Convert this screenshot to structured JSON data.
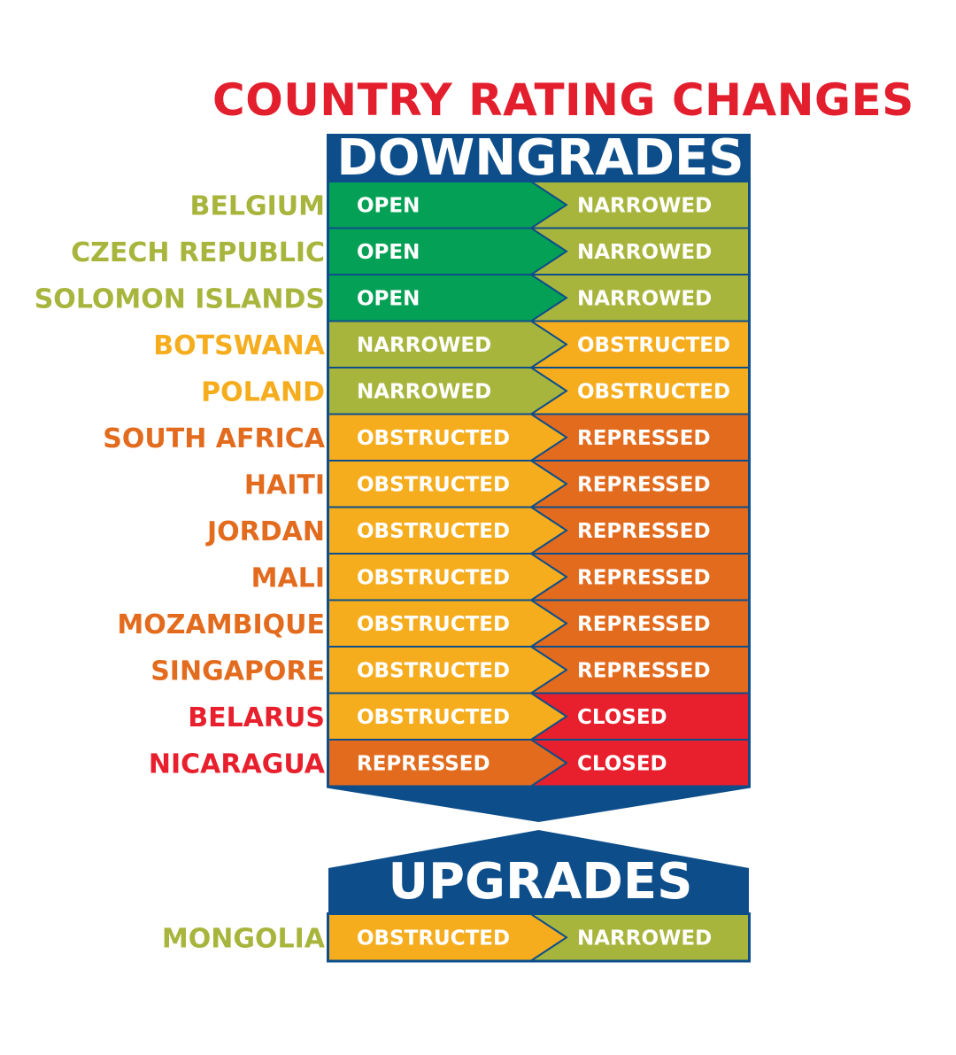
{
  "title": "COUNTRY RATING CHANGES",
  "colors": {
    "title": "#e31e2d",
    "navy": "#0d4e8a",
    "OPEN": "#03a055",
    "NARROWED": "#a8b53c",
    "OBSTRUCTED": "#f5ad1e",
    "OBSTRUCTED_ALT": "#f6a93a",
    "REPRESSED": "#e36b1e",
    "CLOSED": "#e81f2c"
  },
  "sections": [
    {
      "label": "DOWNGRADES",
      "rows": [
        {
          "country": "BELGIUM",
          "from": "OPEN",
          "to": "NARROWED"
        },
        {
          "country": "CZECH REPUBLIC",
          "from": "OPEN",
          "to": "NARROWED"
        },
        {
          "country": "SOLOMON ISLANDS",
          "from": "OPEN",
          "to": "NARROWED"
        },
        {
          "country": "BOTSWANA",
          "from": "NARROWED",
          "to": "OBSTRUCTED"
        },
        {
          "country": "POLAND",
          "from": "NARROWED",
          "to": "OBSTRUCTED"
        },
        {
          "country": "SOUTH AFRICA",
          "from": "OBSTRUCTED",
          "to": "REPRESSED"
        },
        {
          "country": "HAITI",
          "from": "OBSTRUCTED",
          "to": "REPRESSED"
        },
        {
          "country": "JORDAN",
          "from": "OBSTRUCTED",
          "to": "REPRESSED"
        },
        {
          "country": "MALI",
          "from": "OBSTRUCTED",
          "to": "REPRESSED"
        },
        {
          "country": "MOZAMBIQUE",
          "from": "OBSTRUCTED",
          "to": "REPRESSED"
        },
        {
          "country": "SINGAPORE",
          "from": "OBSTRUCTED",
          "to": "REPRESSED"
        },
        {
          "country": "BELARUS",
          "from": "OBSTRUCTED",
          "to": "CLOSED"
        },
        {
          "country": "NICARAGUA",
          "from": "REPRESSED",
          "to": "CLOSED"
        }
      ]
    },
    {
      "label": "UPGRADES",
      "rows": [
        {
          "country": "MONGOLIA",
          "from": "OBSTRUCTED",
          "to": "NARROWED"
        }
      ]
    }
  ]
}
